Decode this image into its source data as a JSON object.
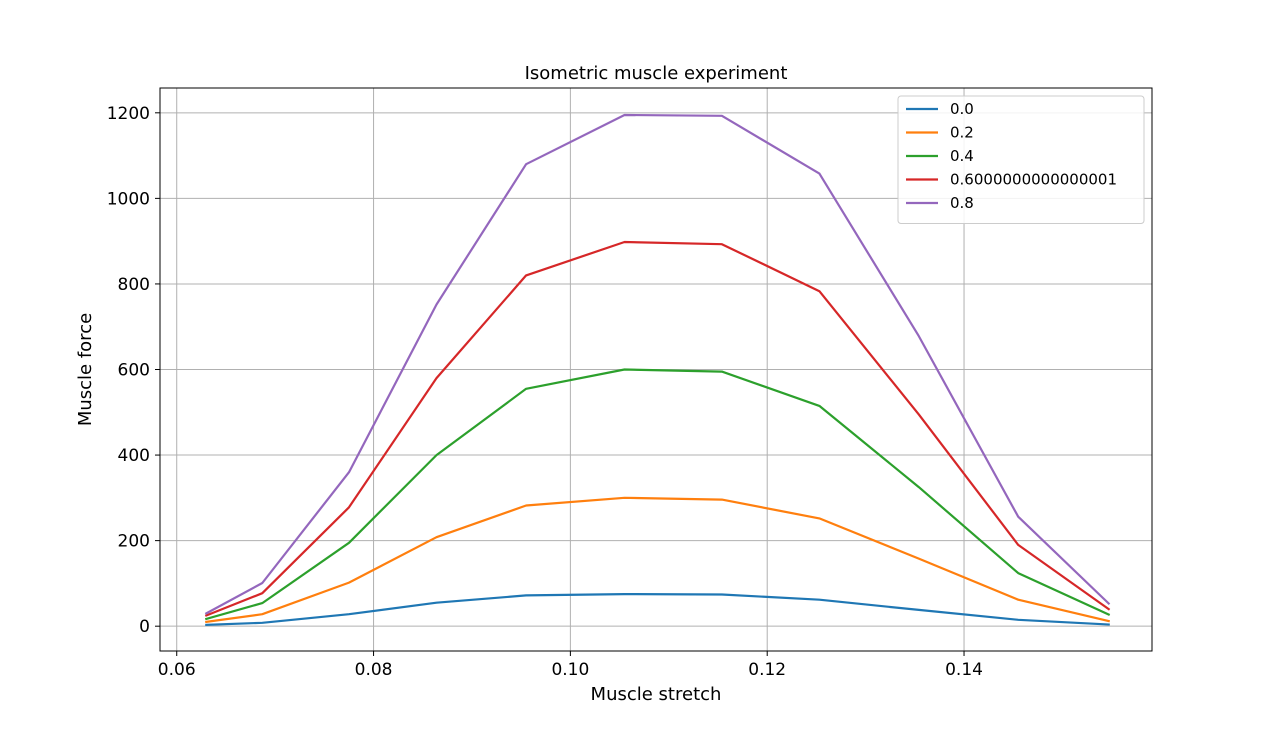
{
  "chart_data": {
    "type": "line",
    "title": "Isometric muscle experiment",
    "xlabel": "Muscle stretch",
    "ylabel": "Muscle force",
    "xlim": [
      0.0583,
      0.1591
    ],
    "ylim": [
      -58,
      1258
    ],
    "xticks": [
      0.06,
      0.08,
      0.1,
      0.12,
      0.14
    ],
    "xtick_labels": [
      "0.06",
      "0.08",
      "0.10",
      "0.12",
      "0.14"
    ],
    "yticks": [
      0,
      200,
      400,
      600,
      800,
      1000,
      1200
    ],
    "ytick_labels": [
      "0",
      "200",
      "400",
      "600",
      "800",
      "1000",
      "1200"
    ],
    "grid": true,
    "legend_position": "upper right",
    "x": [
      0.063,
      0.0687,
      0.0775,
      0.0864,
      0.0955,
      0.1055,
      0.1154,
      0.1253,
      0.1354,
      0.1455,
      0.1547
    ],
    "series": [
      {
        "name": "0.0",
        "color": "#1f77b4",
        "values": [
          3,
          8,
          28,
          55,
          72,
          75,
          74,
          62,
          38,
          15,
          4
        ]
      },
      {
        "name": "0.2",
        "color": "#ff7f0e",
        "values": [
          10,
          28,
          102,
          208,
          282,
          300,
          296,
          252,
          158,
          62,
          12
        ]
      },
      {
        "name": "0.4",
        "color": "#2ca02c",
        "values": [
          17,
          54,
          195,
          400,
          555,
          600,
          595,
          515,
          325,
          124,
          27
        ]
      },
      {
        "name": "0.6000000000000001",
        "color": "#d62728",
        "values": [
          25,
          77,
          278,
          580,
          820,
          898,
          893,
          783,
          495,
          190,
          40
        ]
      },
      {
        "name": "0.8",
        "color": "#9467bd",
        "values": [
          30,
          101,
          360,
          752,
          1080,
          1195,
          1193,
          1058,
          678,
          256,
          53
        ]
      }
    ]
  }
}
